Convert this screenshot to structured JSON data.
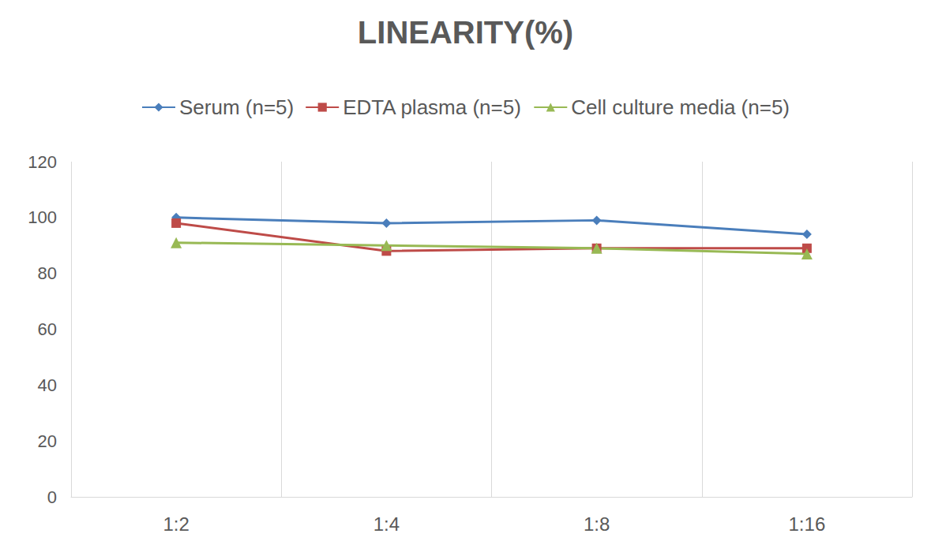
{
  "chart_data": {
    "type": "line",
    "title": "LINEARITY(%)",
    "categories": [
      "1:2",
      "1:4",
      "1:8",
      "1:16"
    ],
    "series": [
      {
        "name": "Serum (n=5)",
        "color": "#4a7ebb",
        "marker": "diamond",
        "values": [
          100,
          98,
          99,
          94
        ]
      },
      {
        "name": "EDTA plasma (n=5)",
        "color": "#be4b48",
        "marker": "square",
        "values": [
          98,
          88,
          89,
          89
        ]
      },
      {
        "name": "Cell culture media (n=5)",
        "color": "#98b954",
        "marker": "triangle",
        "values": [
          91,
          90,
          89,
          87
        ]
      }
    ],
    "ylim": [
      0,
      120
    ],
    "yticks": [
      0,
      20,
      40,
      60,
      80,
      100,
      120
    ],
    "grid": true,
    "legend": "top"
  }
}
